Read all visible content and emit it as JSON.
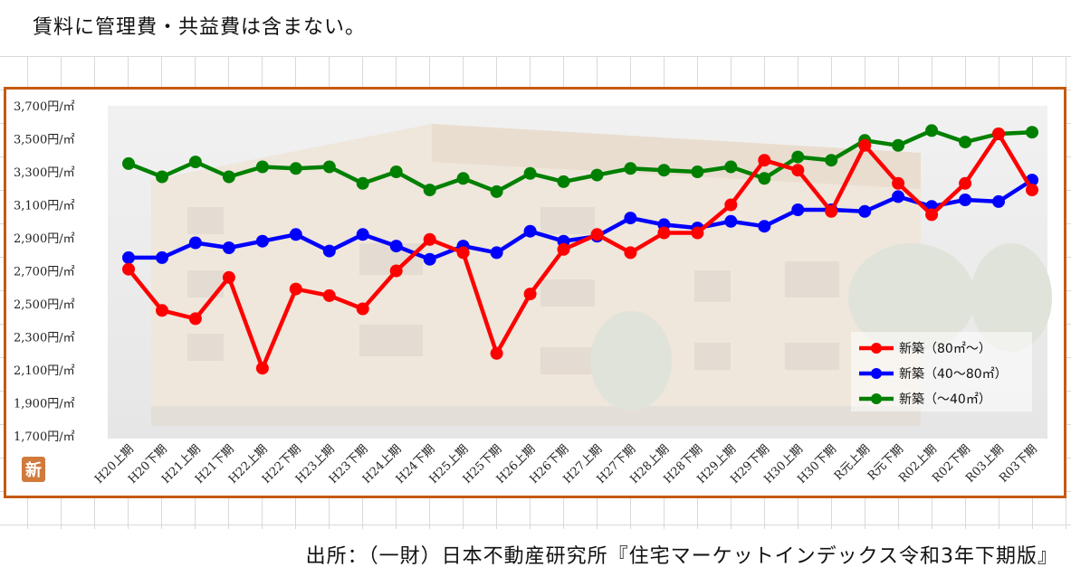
{
  "note": "賃料に管理費・共益費は含まない。",
  "source": "出所：（一財）日本不動産研究所『住宅マーケットインデックス令和3年下期版』",
  "badge": "新",
  "colors": {
    "frame": "#c55a11",
    "red": "#ff0000",
    "blue": "#0000ff",
    "green": "#008000"
  },
  "chart_data": {
    "type": "line",
    "title": "",
    "xlabel": "",
    "ylabel": "",
    "ylim": [
      1700,
      3700
    ],
    "y_ticks": [
      1700,
      1900,
      2100,
      2300,
      2500,
      2700,
      2900,
      3100,
      3300,
      3500,
      3700
    ],
    "y_tick_labels": [
      "1,700円/㎡",
      "1,900円/㎡",
      "2,100円/㎡",
      "2,300円/㎡",
      "2,500円/㎡",
      "2,700円/㎡",
      "2,900円/㎡",
      "3,100円/㎡",
      "3,300円/㎡",
      "3,500円/㎡",
      "3,700円/㎡"
    ],
    "grid": false,
    "legend_position": "bottom-right",
    "categories": [
      "H20上期",
      "H20下期",
      "H21上期",
      "H21下期",
      "H22上期",
      "H22下期",
      "H23上期",
      "H23下期",
      "H24上期",
      "H24下期",
      "H25上期",
      "H25下期",
      "H26上期",
      "H26下期",
      "H27上期",
      "H27下期",
      "H28上期",
      "H28下期",
      "H29上期",
      "H29下期",
      "H30上期",
      "H30下期",
      "R元上期",
      "R元下期",
      "R02上期",
      "R02下期",
      "R03上期",
      "R03下期"
    ],
    "series": [
      {
        "name": "新築（80㎡～）",
        "color": "#ff0000",
        "values": [
          2710,
          2460,
          2410,
          2660,
          2110,
          2590,
          2550,
          2470,
          2700,
          2890,
          2810,
          2200,
          2560,
          2830,
          2920,
          2810,
          2930,
          2930,
          3100,
          3370,
          3310,
          3060,
          3460,
          3230,
          3040,
          3230,
          3530,
          3190
        ]
      },
      {
        "name": "新築（40～80㎡）",
        "color": "#0000ff",
        "values": [
          2780,
          2780,
          2870,
          2840,
          2880,
          2920,
          2820,
          2920,
          2850,
          2770,
          2850,
          2810,
          2940,
          2880,
          2910,
          3020,
          2980,
          2960,
          3000,
          2970,
          3070,
          3070,
          3060,
          3150,
          3090,
          3130,
          3120,
          3250
        ]
      },
      {
        "name": "新築（～40㎡）",
        "color": "#008000",
        "values": [
          3350,
          3270,
          3360,
          3270,
          3330,
          3320,
          3330,
          3230,
          3300,
          3190,
          3260,
          3180,
          3290,
          3240,
          3280,
          3320,
          3310,
          3300,
          3330,
          3260,
          3390,
          3370,
          3490,
          3460,
          3550,
          3480,
          3530,
          3540
        ]
      }
    ]
  }
}
